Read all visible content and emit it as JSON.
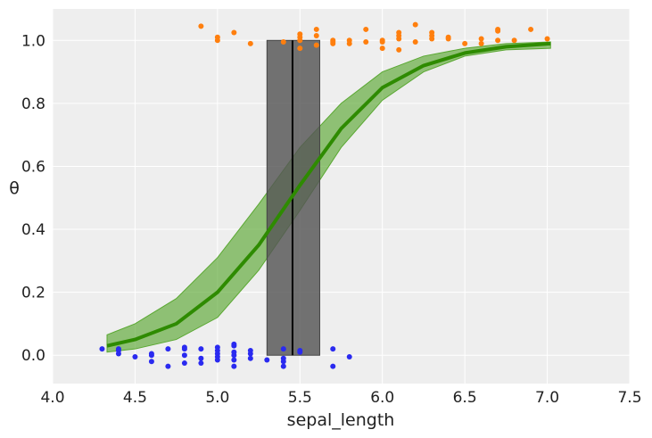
{
  "chart_data": {
    "type": "scatter",
    "title": "",
    "xlabel": "sepal_length",
    "ylabel": "θ",
    "xlim": [
      4.0,
      7.5
    ],
    "ylim": [
      -0.09,
      1.1
    ],
    "xticks": [
      "4.0",
      "4.5",
      "5.0",
      "5.5",
      "6.0",
      "6.5",
      "7.0",
      "7.5"
    ],
    "yticks": [
      "0.0",
      "0.2",
      "0.4",
      "0.6",
      "0.8",
      "1.0"
    ],
    "grid": true,
    "colors": {
      "background": "#eeeeee",
      "class0": "#2a2af0",
      "class1": "#ff7f0e",
      "mean_line": "#2e8b00",
      "band": "#5aa832",
      "hdi_box": "#555555"
    },
    "points_class0": [
      [
        4.3,
        0.02
      ],
      [
        4.4,
        0.015
      ],
      [
        4.4,
        0.005
      ],
      [
        4.4,
        0.02
      ],
      [
        4.5,
        -0.005
      ],
      [
        4.6,
        0.0
      ],
      [
        4.6,
        0.005
      ],
      [
        4.6,
        -0.02
      ],
      [
        4.7,
        0.02
      ],
      [
        4.7,
        -0.035
      ],
      [
        4.8,
        0.02
      ],
      [
        4.8,
        0.025
      ],
      [
        4.8,
        0.0
      ],
      [
        4.8,
        -0.025
      ],
      [
        4.9,
        0.02
      ],
      [
        4.9,
        -0.01
      ],
      [
        4.9,
        -0.025
      ],
      [
        5.0,
        0.025
      ],
      [
        5.0,
        0.015
      ],
      [
        5.0,
        0.005
      ],
      [
        5.0,
        -0.005
      ],
      [
        5.0,
        -0.015
      ],
      [
        5.1,
        0.035
      ],
      [
        5.1,
        0.03
      ],
      [
        5.1,
        0.01
      ],
      [
        5.1,
        0.0
      ],
      [
        5.1,
        -0.015
      ],
      [
        5.1,
        -0.035
      ],
      [
        5.2,
        0.015
      ],
      [
        5.2,
        0.005
      ],
      [
        5.2,
        -0.01
      ],
      [
        5.3,
        -0.015
      ],
      [
        5.4,
        0.02
      ],
      [
        5.4,
        -0.01
      ],
      [
        5.4,
        -0.02
      ],
      [
        5.4,
        -0.035
      ],
      [
        5.5,
        0.015
      ],
      [
        5.5,
        0.01
      ],
      [
        5.7,
        0.02
      ],
      [
        5.7,
        -0.035
      ],
      [
        5.8,
        -0.005
      ]
    ],
    "points_class1": [
      [
        4.9,
        1.045
      ],
      [
        5.0,
        1.01
      ],
      [
        5.0,
        1.0
      ],
      [
        5.1,
        1.025
      ],
      [
        5.2,
        0.99
      ],
      [
        5.4,
        0.995
      ],
      [
        5.5,
        1.02
      ],
      [
        5.5,
        1.01
      ],
      [
        5.5,
        1.0
      ],
      [
        5.5,
        0.975
      ],
      [
        5.6,
        1.035
      ],
      [
        5.6,
        1.015
      ],
      [
        5.6,
        0.985
      ],
      [
        5.7,
        1.0
      ],
      [
        5.7,
        0.995
      ],
      [
        5.7,
        0.99
      ],
      [
        5.8,
        1.0
      ],
      [
        5.8,
        0.99
      ],
      [
        5.9,
        1.035
      ],
      [
        5.9,
        0.995
      ],
      [
        6.0,
        1.0
      ],
      [
        6.0,
        0.995
      ],
      [
        6.0,
        0.975
      ],
      [
        6.1,
        1.025
      ],
      [
        6.1,
        1.015
      ],
      [
        6.1,
        1.005
      ],
      [
        6.1,
        0.97
      ],
      [
        6.2,
        1.05
      ],
      [
        6.2,
        0.995
      ],
      [
        6.3,
        1.025
      ],
      [
        6.3,
        1.015
      ],
      [
        6.3,
        1.005
      ],
      [
        6.4,
        1.01
      ],
      [
        6.4,
        1.005
      ],
      [
        6.5,
        0.99
      ],
      [
        6.6,
        1.005
      ],
      [
        6.6,
        0.99
      ],
      [
        6.7,
        1.035
      ],
      [
        6.7,
        1.03
      ],
      [
        6.7,
        1.0
      ],
      [
        6.8,
        1.0
      ],
      [
        6.9,
        1.035
      ],
      [
        7.0,
        1.005
      ]
    ],
    "curve_x": [
      4.33,
      4.5,
      4.75,
      5.0,
      5.25,
      5.5,
      5.75,
      6.0,
      6.25,
      6.5,
      6.75,
      7.02
    ],
    "curve_mean": [
      0.03,
      0.05,
      0.1,
      0.2,
      0.35,
      0.54,
      0.72,
      0.85,
      0.92,
      0.96,
      0.98,
      0.99
    ],
    "band_lower": [
      0.01,
      0.02,
      0.05,
      0.12,
      0.27,
      0.46,
      0.66,
      0.81,
      0.9,
      0.95,
      0.97,
      0.975
    ],
    "band_upper": [
      0.065,
      0.1,
      0.18,
      0.31,
      0.48,
      0.66,
      0.8,
      0.9,
      0.95,
      0.975,
      0.99,
      0.995
    ],
    "decision_boundary": 5.455,
    "decision_boundary_hdi": [
      5.3,
      5.62
    ]
  }
}
